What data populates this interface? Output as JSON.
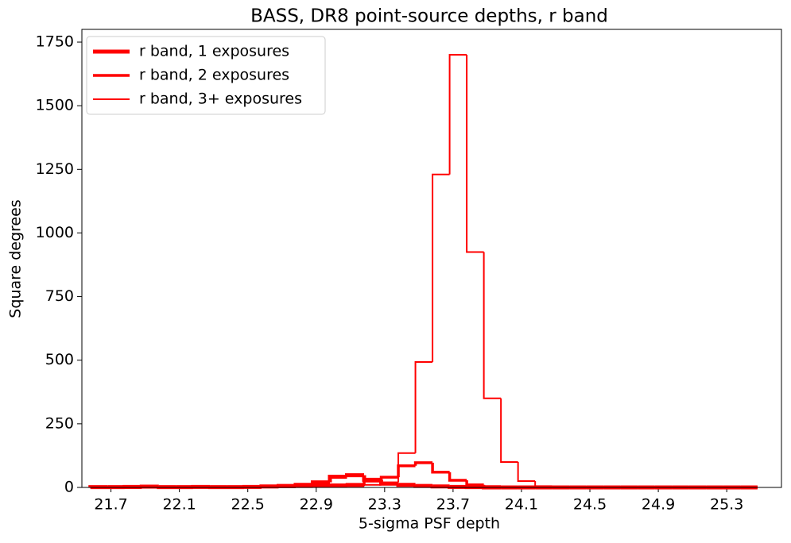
{
  "chart_data": {
    "type": "histogram",
    "title": "BASS, DR8 point-source depths, r band",
    "xlabel": "5-sigma PSF depth",
    "ylabel": "Square degrees",
    "bins": [
      21.58,
      21.68,
      21.78,
      21.88,
      21.98,
      22.08,
      22.18,
      22.28,
      22.38,
      22.48,
      22.58,
      22.68,
      22.78,
      22.88,
      22.98,
      23.08,
      23.18,
      23.28,
      23.38,
      23.48,
      23.58,
      23.68,
      23.78,
      23.88,
      23.98,
      24.08,
      24.18,
      24.28,
      24.38,
      24.48,
      24.58,
      24.68,
      24.78,
      24.88,
      24.98,
      25.08,
      25.18,
      25.28,
      25.38,
      25.48
    ],
    "series": [
      {
        "name": "r band, 1 exposures",
        "color": "#ff0000",
        "linewidth": 5,
        "values": [
          1,
          1,
          2,
          3,
          1,
          1,
          2,
          1,
          1,
          2,
          4,
          6,
          10,
          20,
          42,
          48,
          30,
          15,
          10,
          6,
          4,
          2,
          1,
          0,
          0,
          0,
          0,
          0,
          0,
          0,
          0,
          0,
          0,
          0,
          0,
          0,
          0,
          0,
          0
        ]
      },
      {
        "name": "r band, 2 exposures",
        "color": "#ff0000",
        "linewidth": 3.5,
        "values": [
          0,
          0,
          0,
          1,
          0,
          0,
          1,
          0,
          1,
          1,
          2,
          3,
          5,
          8,
          10,
          12,
          25,
          40,
          85,
          97,
          60,
          28,
          10,
          3,
          1,
          0,
          0,
          0,
          0,
          0,
          0,
          0,
          0,
          0,
          0,
          0,
          0,
          0,
          0
        ]
      },
      {
        "name": "r band, 3+ exposures",
        "color": "#ff0000",
        "linewidth": 2,
        "values": [
          0,
          0,
          0,
          0,
          0,
          0,
          0,
          0,
          0,
          0,
          0,
          1,
          1,
          2,
          3,
          5,
          10,
          20,
          135,
          493,
          1230,
          1700,
          925,
          350,
          100,
          25,
          5,
          2,
          1,
          0,
          0,
          0,
          0,
          0,
          0,
          0,
          0,
          0,
          0
        ]
      }
    ],
    "xlim": [
      21.53,
      25.62
    ],
    "ylim": [
      0,
      1800
    ],
    "xticks": [
      21.7,
      22.1,
      22.5,
      22.9,
      23.3,
      23.7,
      24.1,
      24.5,
      24.9,
      25.3
    ],
    "yticks": [
      0,
      250,
      500,
      750,
      1000,
      1250,
      1500,
      1750
    ],
    "legend": "upper left"
  }
}
